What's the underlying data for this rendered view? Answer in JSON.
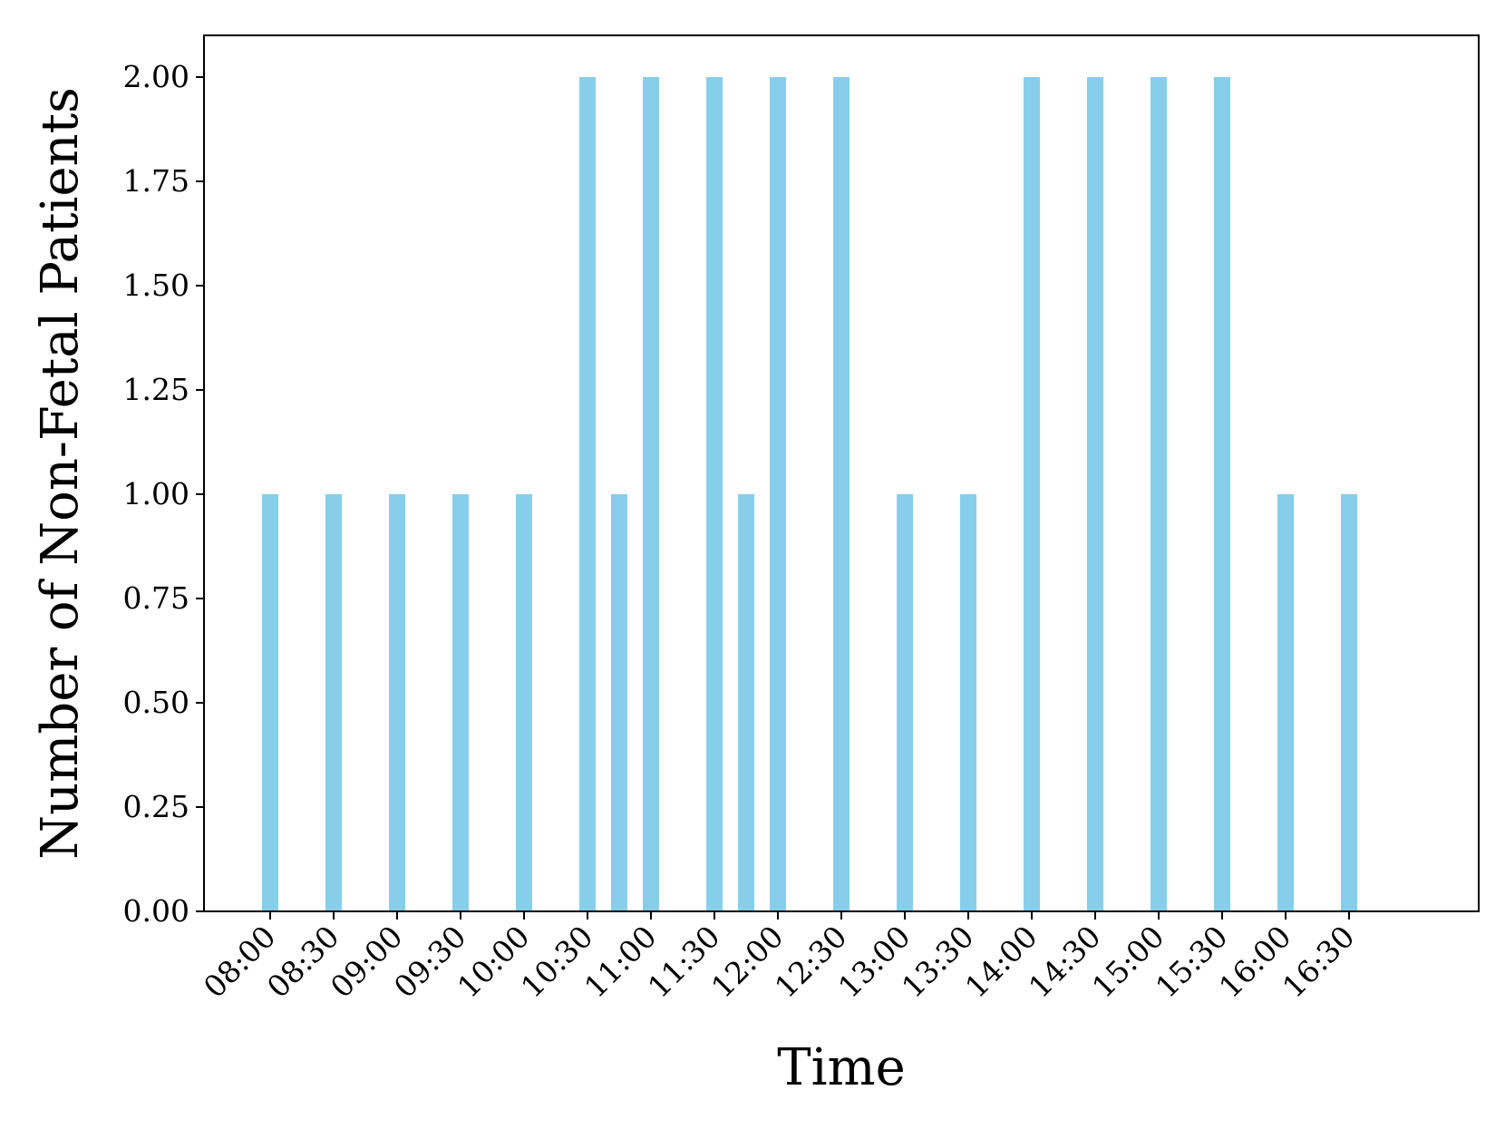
{
  "chart_data": {
    "type": "bar",
    "title": "",
    "xlabel": "Time",
    "ylabel": "Number of Non-Fetal Patients",
    "x_tick_labels": [
      "08:00",
      "08:30",
      "09:00",
      "09:30",
      "10:00",
      "10:30",
      "11:00",
      "11:30",
      "12:00",
      "12:30",
      "13:00",
      "13:30",
      "14:00",
      "14:30",
      "15:00",
      "15:30",
      "16:00",
      "16:30"
    ],
    "y_tick_labels": [
      "0.00",
      "0.25",
      "0.50",
      "0.75",
      "1.00",
      "1.25",
      "1.50",
      "1.75",
      "2.00"
    ],
    "ylim": [
      0,
      2.1
    ],
    "grid": false,
    "bar_color": "#87ceeb",
    "bars": [
      {
        "time": "08:00",
        "value": 1
      },
      {
        "time": "08:30",
        "value": 1
      },
      {
        "time": "09:00",
        "value": 1
      },
      {
        "time": "09:30",
        "value": 1
      },
      {
        "time": "10:00",
        "value": 1
      },
      {
        "time": "10:30",
        "value": 2
      },
      {
        "time": "10:45",
        "value": 1
      },
      {
        "time": "11:00",
        "value": 2
      },
      {
        "time": "11:30",
        "value": 2
      },
      {
        "time": "11:45",
        "value": 1
      },
      {
        "time": "12:00",
        "value": 2
      },
      {
        "time": "12:30",
        "value": 2
      },
      {
        "time": "13:00",
        "value": 1
      },
      {
        "time": "13:30",
        "value": 1
      },
      {
        "time": "14:00",
        "value": 2
      },
      {
        "time": "14:30",
        "value": 2
      },
      {
        "time": "15:00",
        "value": 2
      },
      {
        "time": "15:30",
        "value": 2
      },
      {
        "time": "16:00",
        "value": 1
      },
      {
        "time": "16:30",
        "value": 1
      }
    ]
  }
}
